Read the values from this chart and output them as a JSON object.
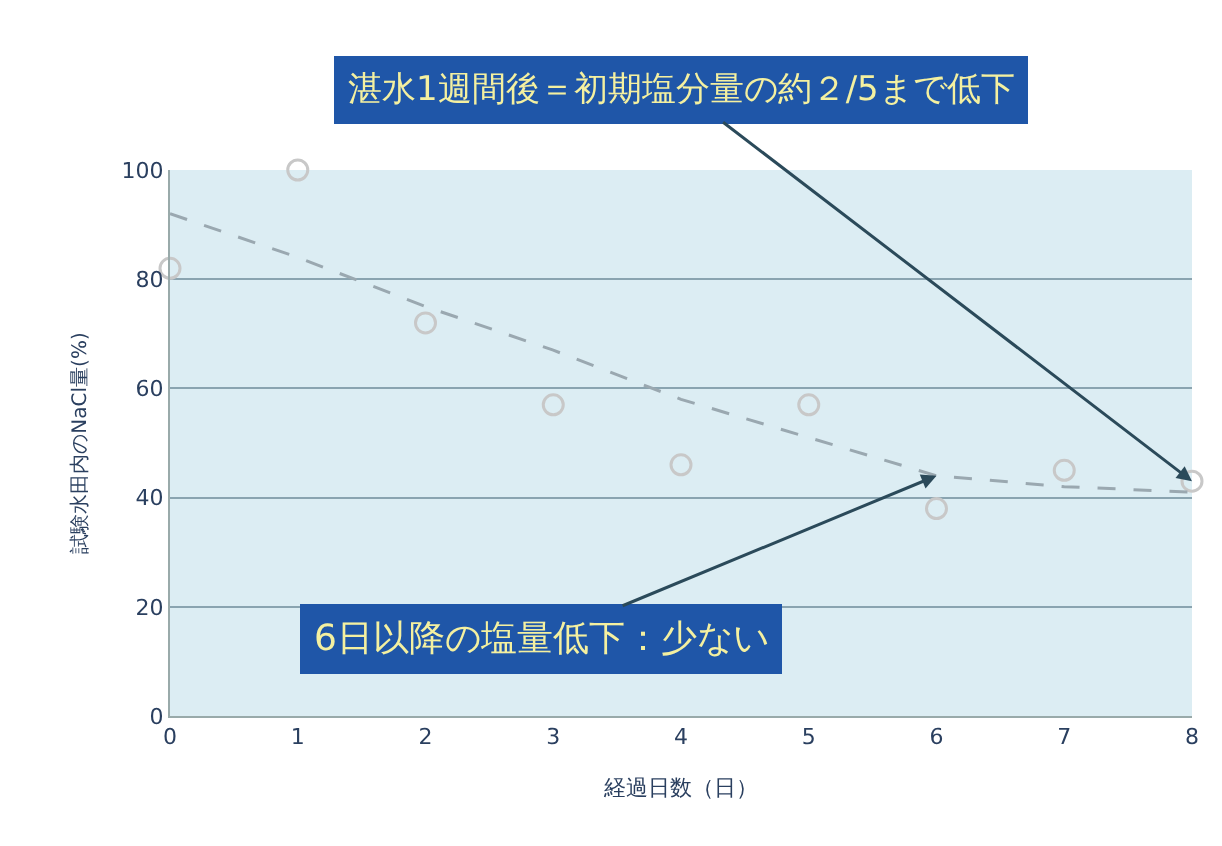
{
  "chart_data": {
    "type": "scatter",
    "xlabel": "経過日数（日）",
    "ylabel": "試験水田内のNaCl量(%)",
    "x": [
      0,
      1,
      2,
      3,
      4,
      5,
      6,
      7,
      8
    ],
    "series": [
      {
        "color": "#c8c8c8",
        "marker": "circle",
        "values": [
          82,
          100,
          72,
          57,
          46,
          57,
          38,
          45,
          43
        ]
      },
      {
        "type": "line",
        "color": "#9aa8b0",
        "line_style": "dashed",
        "marker": "none",
        "x": [
          0,
          1,
          2,
          3,
          4,
          5,
          6,
          7,
          8
        ],
        "values": [
          92,
          84,
          75,
          67,
          58,
          51,
          44,
          42,
          41
        ]
      }
    ],
    "annotations": [
      {
        "text": "湛水1週間後＝初期塩分量の約２/5まで低下",
        "x": 8,
        "y": 43
      },
      {
        "text": "6日以降の塩量低下：少ない",
        "x": 6,
        "y": 44
      }
    ],
    "xlim": [
      0,
      8
    ],
    "xticks": [
      0,
      1,
      2,
      3,
      4,
      5,
      6,
      7,
      8
    ],
    "ylim": [
      0,
      100
    ],
    "yticks": [
      0,
      20,
      40,
      60,
      80,
      100
    ],
    "grid": "y"
  }
}
